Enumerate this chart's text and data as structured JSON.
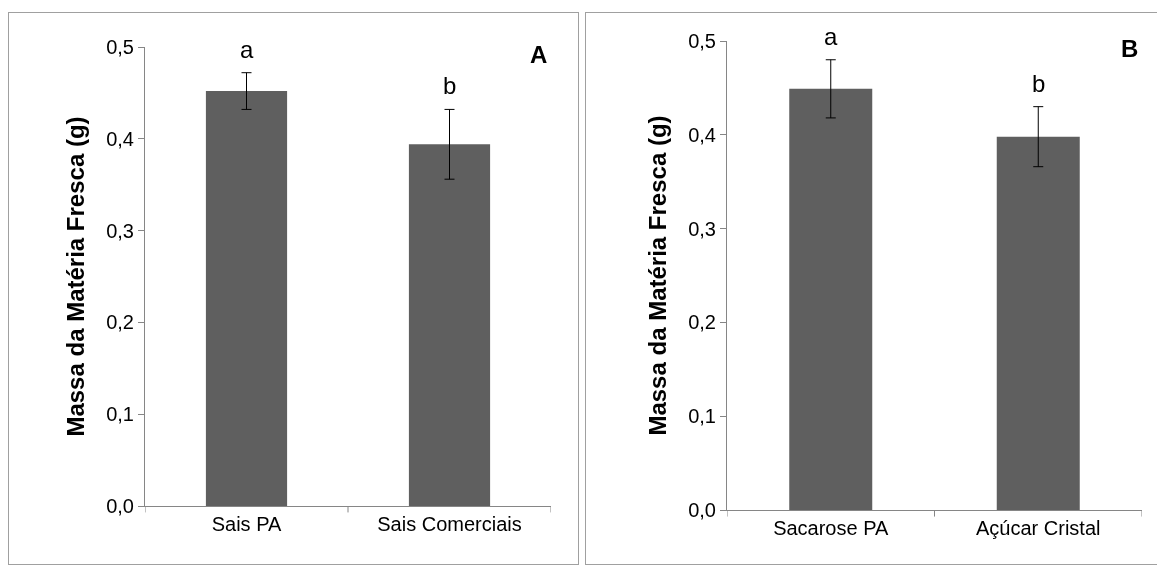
{
  "chart_data": [
    {
      "type": "bar",
      "ylabel": "Massa da Matéria Fresca (g)",
      "categories": [
        "Sais PA",
        "Sais Comerciais"
      ],
      "values": [
        0.452,
        0.394
      ],
      "errors": [
        0.02,
        0.038
      ],
      "color": "#5f5f5f",
      "ylim": [
        0,
        0.5
      ],
      "yticks": [
        {
          "value": 0,
          "label": "0,0"
        },
        {
          "value": 0.1,
          "label": "0,1"
        },
        {
          "value": 0.2,
          "label": "0,2"
        },
        {
          "value": 0.3,
          "label": "0,3"
        },
        {
          "value": 0.4,
          "label": "0,4"
        },
        {
          "value": 0.5,
          "label": "0,5"
        }
      ],
      "grid": false,
      "annotations": [
        {
          "text": "a",
          "x": "Sais PA",
          "y": 0.472
        },
        {
          "text": "b",
          "x": "Sais Comerciais",
          "y": 0.432
        },
        "A"
      ]
    },
    {
      "type": "bar",
      "ylabel": "Massa da Matéria Fresca (g)",
      "categories": [
        "Sacarose PA",
        "Açúcar Cristal"
      ],
      "values": [
        0.449,
        0.398
      ],
      "errors": [
        0.031,
        0.032
      ],
      "color": "#5f5f5f",
      "ylim": [
        0,
        0.5
      ],
      "yticks": [
        {
          "value": 0,
          "label": "0,0"
        },
        {
          "value": 0.1,
          "label": "0,1"
        },
        {
          "value": 0.2,
          "label": "0,2"
        },
        {
          "value": 0.3,
          "label": "0,3"
        },
        {
          "value": 0.4,
          "label": "0,4"
        },
        {
          "value": 0.5,
          "label": "0,5"
        }
      ],
      "grid": false,
      "annotations": [
        {
          "text": "a",
          "x": "Sacarose PA",
          "y": 0.48
        },
        {
          "text": "b",
          "x": "Açúcar Cristal",
          "y": 0.43
        },
        "B"
      ]
    }
  ]
}
